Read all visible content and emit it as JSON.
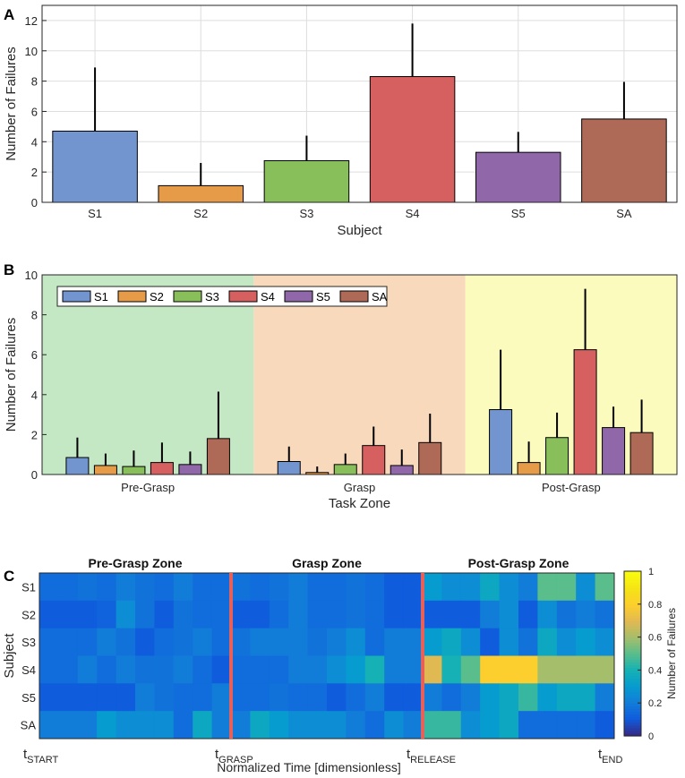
{
  "panels": {
    "a": "A",
    "b": "B",
    "c": "C"
  },
  "chart_data": [
    {
      "type": "bar",
      "panel": "A",
      "categories": [
        "S1",
        "S2",
        "S3",
        "S4",
        "S5",
        "SA"
      ],
      "values": [
        4.7,
        1.1,
        2.75,
        8.3,
        3.3,
        5.5
      ],
      "errors": [
        4.2,
        1.5,
        1.65,
        3.5,
        1.35,
        2.45
      ],
      "colors": [
        "#7294cf",
        "#e59b48",
        "#88bf5a",
        "#d65f5f",
        "#9068a9",
        "#ae6a57"
      ],
      "xlabel": "Subject",
      "ylabel": "Number of Failures",
      "ylim": [
        0,
        13
      ],
      "yticks": [
        0,
        2,
        4,
        6,
        8,
        10,
        12
      ],
      "grid": true
    },
    {
      "type": "bar",
      "panel": "B",
      "categories": [
        "Pre-Grasp",
        "Grasp",
        "Post-Grasp"
      ],
      "series": [
        {
          "name": "S1",
          "color": "#7294cf",
          "values": [
            0.85,
            0.65,
            3.25
          ],
          "errors": [
            1.0,
            0.75,
            3.0
          ]
        },
        {
          "name": "S2",
          "color": "#e59b48",
          "values": [
            0.45,
            0.1,
            0.6
          ],
          "errors": [
            0.6,
            0.3,
            1.05
          ]
        },
        {
          "name": "S3",
          "color": "#88bf5a",
          "values": [
            0.4,
            0.5,
            1.85
          ],
          "errors": [
            0.8,
            0.55,
            1.25
          ]
        },
        {
          "name": "S4",
          "color": "#d65f5f",
          "values": [
            0.6,
            1.45,
            6.25
          ],
          "errors": [
            1.0,
            0.95,
            3.05
          ]
        },
        {
          "name": "S5",
          "color": "#9068a9",
          "values": [
            0.5,
            0.45,
            2.35
          ],
          "errors": [
            0.65,
            0.8,
            1.05
          ]
        },
        {
          "name": "SA",
          "color": "#ae6a57",
          "values": [
            1.8,
            1.6,
            2.1
          ],
          "errors": [
            2.35,
            1.45,
            1.65
          ]
        }
      ],
      "zone_colors": [
        "#c3e8c3",
        "#f8d9bb",
        "#fbfbbd"
      ],
      "xlabel": "Task Zone",
      "ylabel": "Number of Failures",
      "ylim": [
        0,
        10
      ],
      "yticks": [
        0,
        2,
        4,
        6,
        8,
        10
      ],
      "legend_position": "top-left"
    },
    {
      "type": "heatmap",
      "panel": "C",
      "rows": [
        "S1",
        "S2",
        "S3",
        "S4",
        "S5",
        "SA"
      ],
      "zones": [
        "Pre-Grasp Zone",
        "Grasp Zone",
        "Post-Grasp Zone"
      ],
      "zone_columns": [
        10,
        10,
        10
      ],
      "values": [
        [
          0.15,
          0.15,
          0.17,
          0.15,
          0.2,
          0.17,
          0.15,
          0.2,
          0.15,
          0.15,
          0.17,
          0.15,
          0.17,
          0.2,
          0.15,
          0.15,
          0.17,
          0.15,
          0.1,
          0.1,
          0.3,
          0.25,
          0.25,
          0.35,
          0.25,
          0.2,
          0.5,
          0.5,
          0.25,
          0.5
        ],
        [
          0.1,
          0.1,
          0.1,
          0.12,
          0.25,
          0.17,
          0.1,
          0.17,
          0.15,
          0.15,
          0.1,
          0.1,
          0.15,
          0.2,
          0.15,
          0.15,
          0.17,
          0.15,
          0.1,
          0.1,
          0.1,
          0.1,
          0.1,
          0.2,
          0.25,
          0.1,
          0.25,
          0.17,
          0.2,
          0.17
        ],
        [
          0.15,
          0.15,
          0.15,
          0.2,
          0.17,
          0.1,
          0.15,
          0.17,
          0.2,
          0.15,
          0.17,
          0.2,
          0.2,
          0.2,
          0.17,
          0.2,
          0.25,
          0.15,
          0.2,
          0.2,
          0.3,
          0.35,
          0.25,
          0.1,
          0.25,
          0.17,
          0.35,
          0.25,
          0.3,
          0.25
        ],
        [
          0.15,
          0.15,
          0.2,
          0.15,
          0.2,
          0.17,
          0.17,
          0.2,
          0.15,
          0.1,
          0.15,
          0.15,
          0.15,
          0.2,
          0.2,
          0.25,
          0.3,
          0.4,
          0.2,
          0.2,
          0.7,
          0.4,
          0.5,
          0.8,
          0.8,
          0.8,
          0.6,
          0.6,
          0.6,
          0.6
        ],
        [
          0.1,
          0.1,
          0.1,
          0.1,
          0.1,
          0.2,
          0.17,
          0.15,
          0.15,
          0.2,
          0.15,
          0.15,
          0.17,
          0.15,
          0.15,
          0.1,
          0.15,
          0.2,
          0.1,
          0.1,
          0.2,
          0.15,
          0.2,
          0.3,
          0.35,
          0.45,
          0.3,
          0.35,
          0.35,
          0.2
        ],
        [
          0.2,
          0.2,
          0.2,
          0.3,
          0.25,
          0.25,
          0.25,
          0.15,
          0.35,
          0.2,
          0.2,
          0.35,
          0.3,
          0.25,
          0.25,
          0.25,
          0.2,
          0.15,
          0.25,
          0.2,
          0.45,
          0.45,
          0.25,
          0.3,
          0.35,
          0.15,
          0.15,
          0.15,
          0.15,
          0.1
        ]
      ],
      "markers": [
        "GRASP",
        "RELEASE"
      ],
      "marker_color": "#e8605a",
      "xlabel": "Normalized Time [dimensionless]",
      "ylabel": "Subject",
      "xticks": [
        {
          "main": "t",
          "sub": "START"
        },
        {
          "main": "t",
          "sub": "GRASP"
        },
        {
          "main": "t",
          "sub": "RELEASE"
        },
        {
          "main": "t",
          "sub": "END"
        }
      ],
      "colorbar": {
        "label": "Number of Failures",
        "range": [
          0,
          1
        ],
        "ticks": [
          0,
          0.2,
          0.4,
          0.6,
          0.8,
          1
        ],
        "tick_labels": [
          "0",
          "0.2",
          "0.4",
          "0.6",
          "0.8",
          "1"
        ]
      }
    }
  ]
}
